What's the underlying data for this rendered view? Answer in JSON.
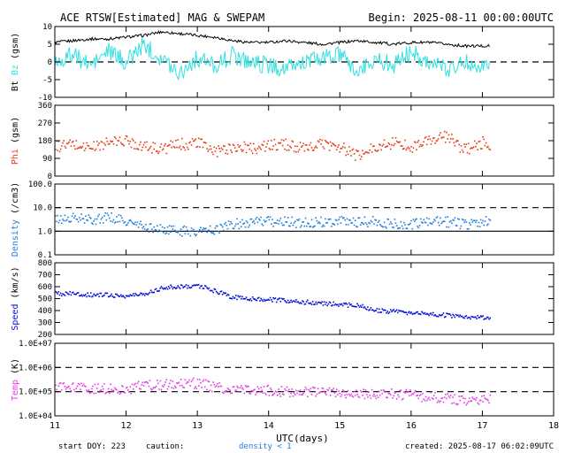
{
  "header": {
    "title": "ACE RTSW[Estimated] MAG & SWEPAM",
    "begin_label": "Begin: 2025-08-11 00:00:00UTC"
  },
  "footer": {
    "start_doy": "start DOY: 223",
    "caution": "caution:",
    "density_note": "density < 1",
    "created": "created: 2025-08-17 06:02:09UTC"
  },
  "colors": {
    "bt": "#000000",
    "bz": "#33e0e0",
    "phi": "#e83a14",
    "density": "#1e7de0",
    "speed": "#0010d8",
    "temp": "#e83ae8",
    "frame": "#000000"
  },
  "chart_data": [
    {
      "type": "line",
      "panel": "bt-bz",
      "ylabel_parts": [
        "Bt",
        "Bz",
        "(gsm)"
      ],
      "ylim": [
        -10,
        10
      ],
      "yticks": [
        "10",
        "5",
        "0",
        "-5",
        "-10"
      ],
      "ytick_values": [
        10,
        5,
        0,
        -5,
        -10
      ],
      "dashed_lines": [
        0
      ],
      "x": [
        11.0,
        11.25,
        11.5,
        11.75,
        12.0,
        12.25,
        12.5,
        12.75,
        13.0,
        13.25,
        13.5,
        13.75,
        14.0,
        14.25,
        14.5,
        14.75,
        15.0,
        15.25,
        15.5,
        15.75,
        16.0,
        16.25,
        16.5,
        16.75,
        17.0,
        17.1
      ],
      "series": [
        {
          "name": "Bt",
          "values": [
            5.5,
            6,
            6.5,
            6.5,
            7,
            7.5,
            8.5,
            8,
            7.5,
            7,
            6,
            5.5,
            5.5,
            6,
            5.5,
            5,
            5.5,
            6,
            5.5,
            5,
            5.5,
            5.5,
            5,
            4.5,
            4.5,
            4.5
          ]
        },
        {
          "name": "Bz",
          "values": [
            0,
            2,
            -1,
            3,
            0,
            5,
            1,
            -3,
            1,
            -1,
            2,
            0,
            -1,
            -2,
            0,
            1,
            2,
            -3,
            1,
            -1,
            3,
            0,
            -2,
            0,
            -1,
            -1
          ]
        }
      ]
    },
    {
      "type": "scatter",
      "panel": "phi",
      "ylabel": "Phi (gsm)",
      "ylim": [
        0,
        360
      ],
      "yticks": [
        "360",
        "270",
        "180",
        "90",
        "0"
      ],
      "ytick_values": [
        360,
        270,
        180,
        90,
        0
      ],
      "x": [
        11.0,
        11.25,
        11.5,
        11.75,
        12.0,
        12.25,
        12.5,
        12.75,
        13.0,
        13.25,
        13.5,
        13.75,
        14.0,
        14.25,
        14.5,
        14.75,
        15.0,
        15.25,
        15.5,
        15.75,
        16.0,
        16.25,
        16.5,
        16.75,
        17.0,
        17.1
      ],
      "values": [
        150,
        160,
        145,
        170,
        180,
        150,
        140,
        160,
        170,
        120,
        150,
        140,
        155,
        160,
        135,
        165,
        145,
        100,
        150,
        170,
        150,
        180,
        200,
        130,
        170,
        150
      ]
    },
    {
      "type": "scatter",
      "panel": "density",
      "ylabel": "Density (/cm3)",
      "scale": "log",
      "ylim": [
        0.1,
        100
      ],
      "yticks": [
        "100.0",
        "10.0",
        "1.0",
        "0.1"
      ],
      "ytick_values": [
        100,
        10,
        1,
        0.1
      ],
      "dashed_lines": [
        10
      ],
      "solid_lines": [
        1
      ],
      "x": [
        11.0,
        11.25,
        11.5,
        11.75,
        12.0,
        12.25,
        12.5,
        12.75,
        13.0,
        13.25,
        13.5,
        13.75,
        14.0,
        14.25,
        14.5,
        14.75,
        15.0,
        15.25,
        15.5,
        15.75,
        16.0,
        16.25,
        16.5,
        16.75,
        17.0,
        17.1
      ],
      "values": [
        3,
        3.5,
        3,
        4,
        2.5,
        1.5,
        1.2,
        1.0,
        1.0,
        1.2,
        2,
        2.5,
        2.5,
        2.5,
        2.2,
        2.5,
        2.8,
        2.5,
        2.5,
        2,
        2,
        2.5,
        2.5,
        2,
        2.5,
        2.5
      ]
    },
    {
      "type": "scatter",
      "panel": "speed",
      "ylabel": "Speed (km/s)",
      "ylim": [
        200,
        800
      ],
      "yticks": [
        "800",
        "700",
        "600",
        "500",
        "400",
        "300",
        "200"
      ],
      "ytick_values": [
        800,
        700,
        600,
        500,
        400,
        300,
        200
      ],
      "x": [
        11.0,
        11.25,
        11.5,
        11.75,
        12.0,
        12.25,
        12.5,
        12.75,
        13.0,
        13.25,
        13.5,
        13.75,
        14.0,
        14.25,
        14.5,
        14.75,
        15.0,
        15.25,
        15.5,
        15.75,
        16.0,
        16.25,
        16.5,
        16.75,
        17.0,
        17.1
      ],
      "values": [
        540,
        540,
        530,
        530,
        520,
        540,
        590,
        600,
        610,
        560,
        510,
        500,
        490,
        480,
        470,
        460,
        450,
        440,
        400,
        390,
        380,
        370,
        360,
        350,
        340,
        340
      ]
    },
    {
      "type": "scatter",
      "panel": "temp",
      "ylabel": "Temp (K)",
      "scale": "log",
      "ylim": [
        10000,
        10000000
      ],
      "yticks": [
        "1.0E+07",
        "1.0E+06",
        "1.0E+05",
        "1.0E+04"
      ],
      "ytick_values": [
        10000000,
        1000000,
        100000,
        10000
      ],
      "dashed_lines": [
        1000000,
        100000
      ],
      "x": [
        11.0,
        11.25,
        11.5,
        11.75,
        12.0,
        12.25,
        12.5,
        12.75,
        13.0,
        13.25,
        13.5,
        13.75,
        14.0,
        14.25,
        14.5,
        14.75,
        15.0,
        15.25,
        15.5,
        15.75,
        16.0,
        16.25,
        16.5,
        16.75,
        17.0,
        17.1
      ],
      "values": [
        150000,
        140000,
        130000,
        140000,
        120000,
        180000,
        200000,
        210000,
        220000,
        150000,
        120000,
        110000,
        110000,
        100000,
        100000,
        90000,
        90000,
        80000,
        70000,
        80000,
        70000,
        60000,
        50000,
        40000,
        50000,
        50000
      ]
    }
  ],
  "xaxis": {
    "label": "UTC(days)",
    "ticks": [
      "11",
      "12",
      "13",
      "14",
      "15",
      "16",
      "17",
      "18"
    ],
    "tick_values": [
      11,
      12,
      13,
      14,
      15,
      16,
      17,
      18
    ],
    "xlim": [
      11,
      18
    ]
  }
}
